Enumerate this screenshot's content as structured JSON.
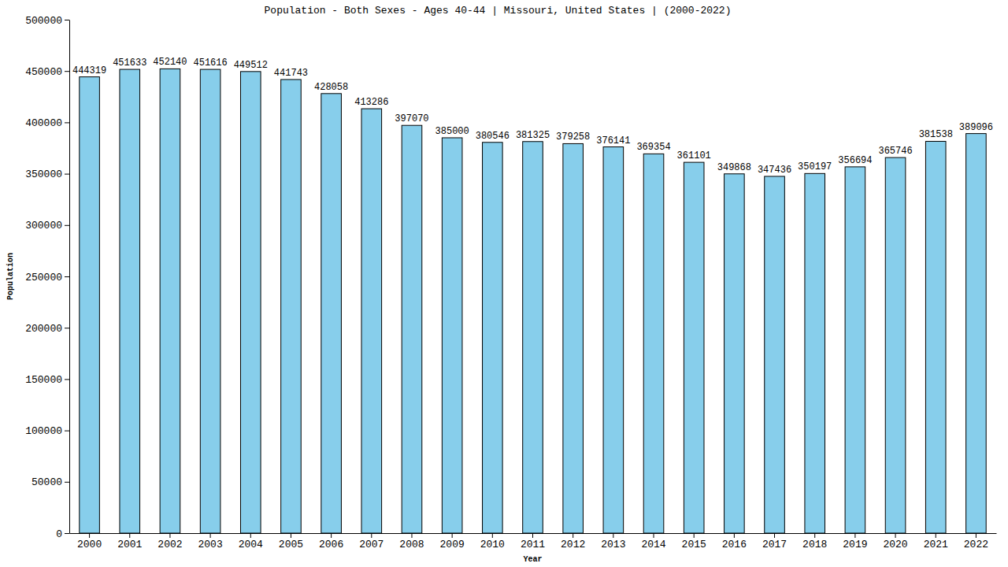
{
  "chart_data": {
    "type": "bar",
    "title": "Population - Both Sexes - Ages 40-44 | Missouri, United States |  (2000-2022)",
    "x_label": "Year",
    "y_label": "Population",
    "categories": [
      "2000",
      "2001",
      "2002",
      "2003",
      "2004",
      "2005",
      "2006",
      "2007",
      "2008",
      "2009",
      "2010",
      "2011",
      "2012",
      "2013",
      "2014",
      "2015",
      "2016",
      "2017",
      "2018",
      "2019",
      "2020",
      "2021",
      "2022"
    ],
    "values": [
      444319,
      451633,
      452140,
      451616,
      449512,
      441743,
      428058,
      413286,
      397070,
      385000,
      380546,
      381325,
      379258,
      376141,
      369354,
      361101,
      349868,
      347436,
      350197,
      356694,
      365746,
      381538,
      389096
    ],
    "color": "#87ceeb",
    "ylim": [
      0,
      500000
    ],
    "yticks": [
      0,
      50000,
      100000,
      150000,
      200000,
      250000,
      300000,
      350000,
      400000,
      450000,
      500000
    ],
    "grid": false,
    "data_labels": true
  }
}
